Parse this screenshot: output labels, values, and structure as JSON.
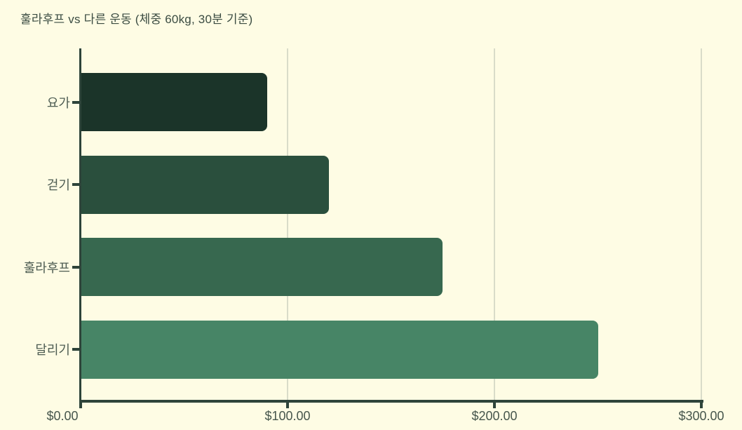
{
  "title": "훌라후프 vs 다른 운동 (체중 60kg, 30분 기준)",
  "colors": {
    "background": "#fefce4",
    "axis": "#2e443a",
    "gridline": "#d9dcc9",
    "title_text": "#3b4c42",
    "category_label_text": "#4d5c52",
    "tick_label_text": "#46564c"
  },
  "chart_data": {
    "type": "bar",
    "orientation": "horizontal",
    "title": "훌라후프 vs 다른 운동 (체중 60kg, 30분 기준)",
    "categories": [
      "요가",
      "걷기",
      "훌라후프",
      "달리기"
    ],
    "values": [
      90,
      120,
      175,
      250
    ],
    "bar_colors": [
      "#1b3429",
      "#2a4f3d",
      "#37684f",
      "#478566"
    ],
    "xlabel": "",
    "ylabel": "",
    "xlim": [
      0,
      300
    ],
    "xticks": [
      0,
      100,
      200,
      300
    ],
    "xtick_labels": [
      "$0.00",
      "$100.00",
      "$200.00",
      "$300.00"
    ],
    "grid": "vertical",
    "legend": false
  }
}
